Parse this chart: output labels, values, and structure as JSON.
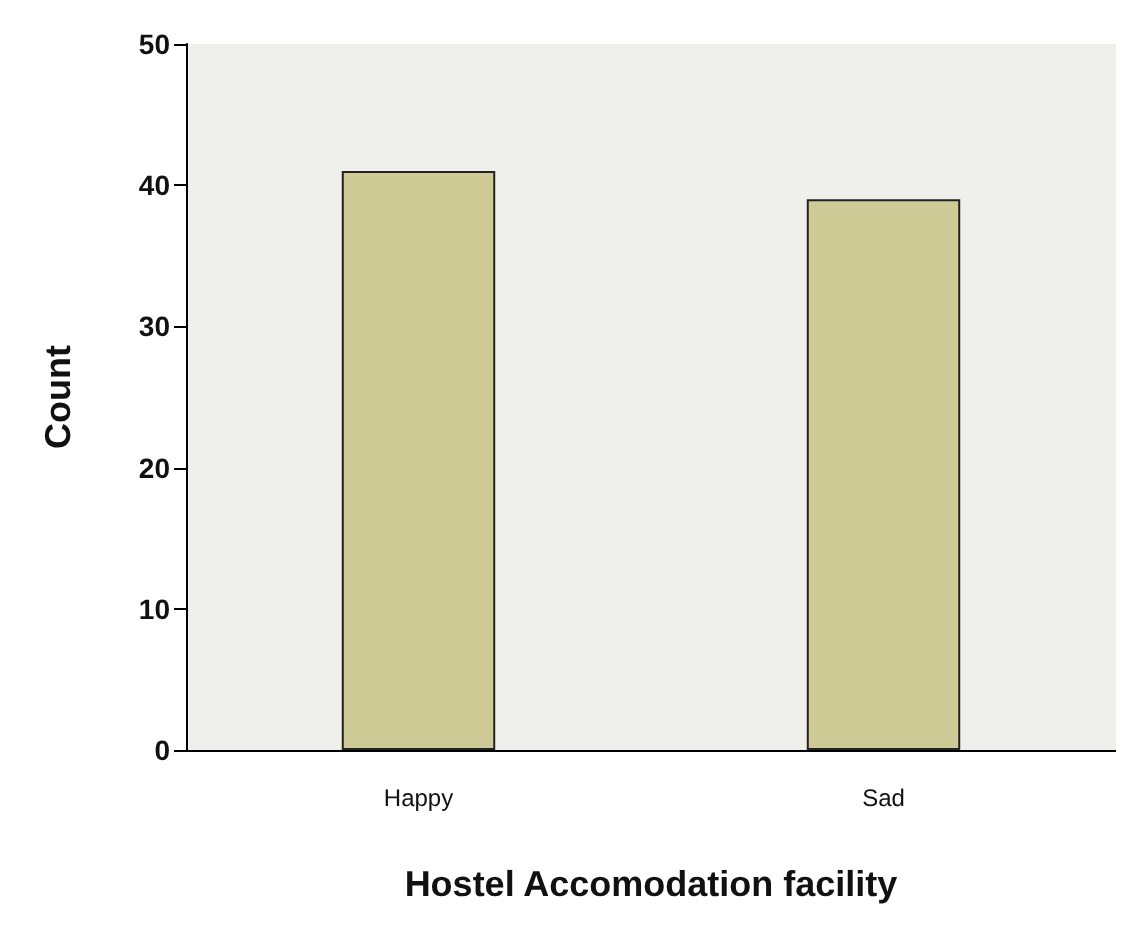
{
  "chart_data": {
    "type": "bar",
    "xlabel": "Hostel Accomodation facility",
    "ylabel": "Count",
    "categories": [
      "Happy",
      "Sad"
    ],
    "values": [
      41,
      39
    ],
    "color": "#cfcb97",
    "ylim": [
      0,
      50
    ],
    "yticks": [
      0,
      10,
      20,
      30,
      40,
      50
    ],
    "grid": false
  }
}
